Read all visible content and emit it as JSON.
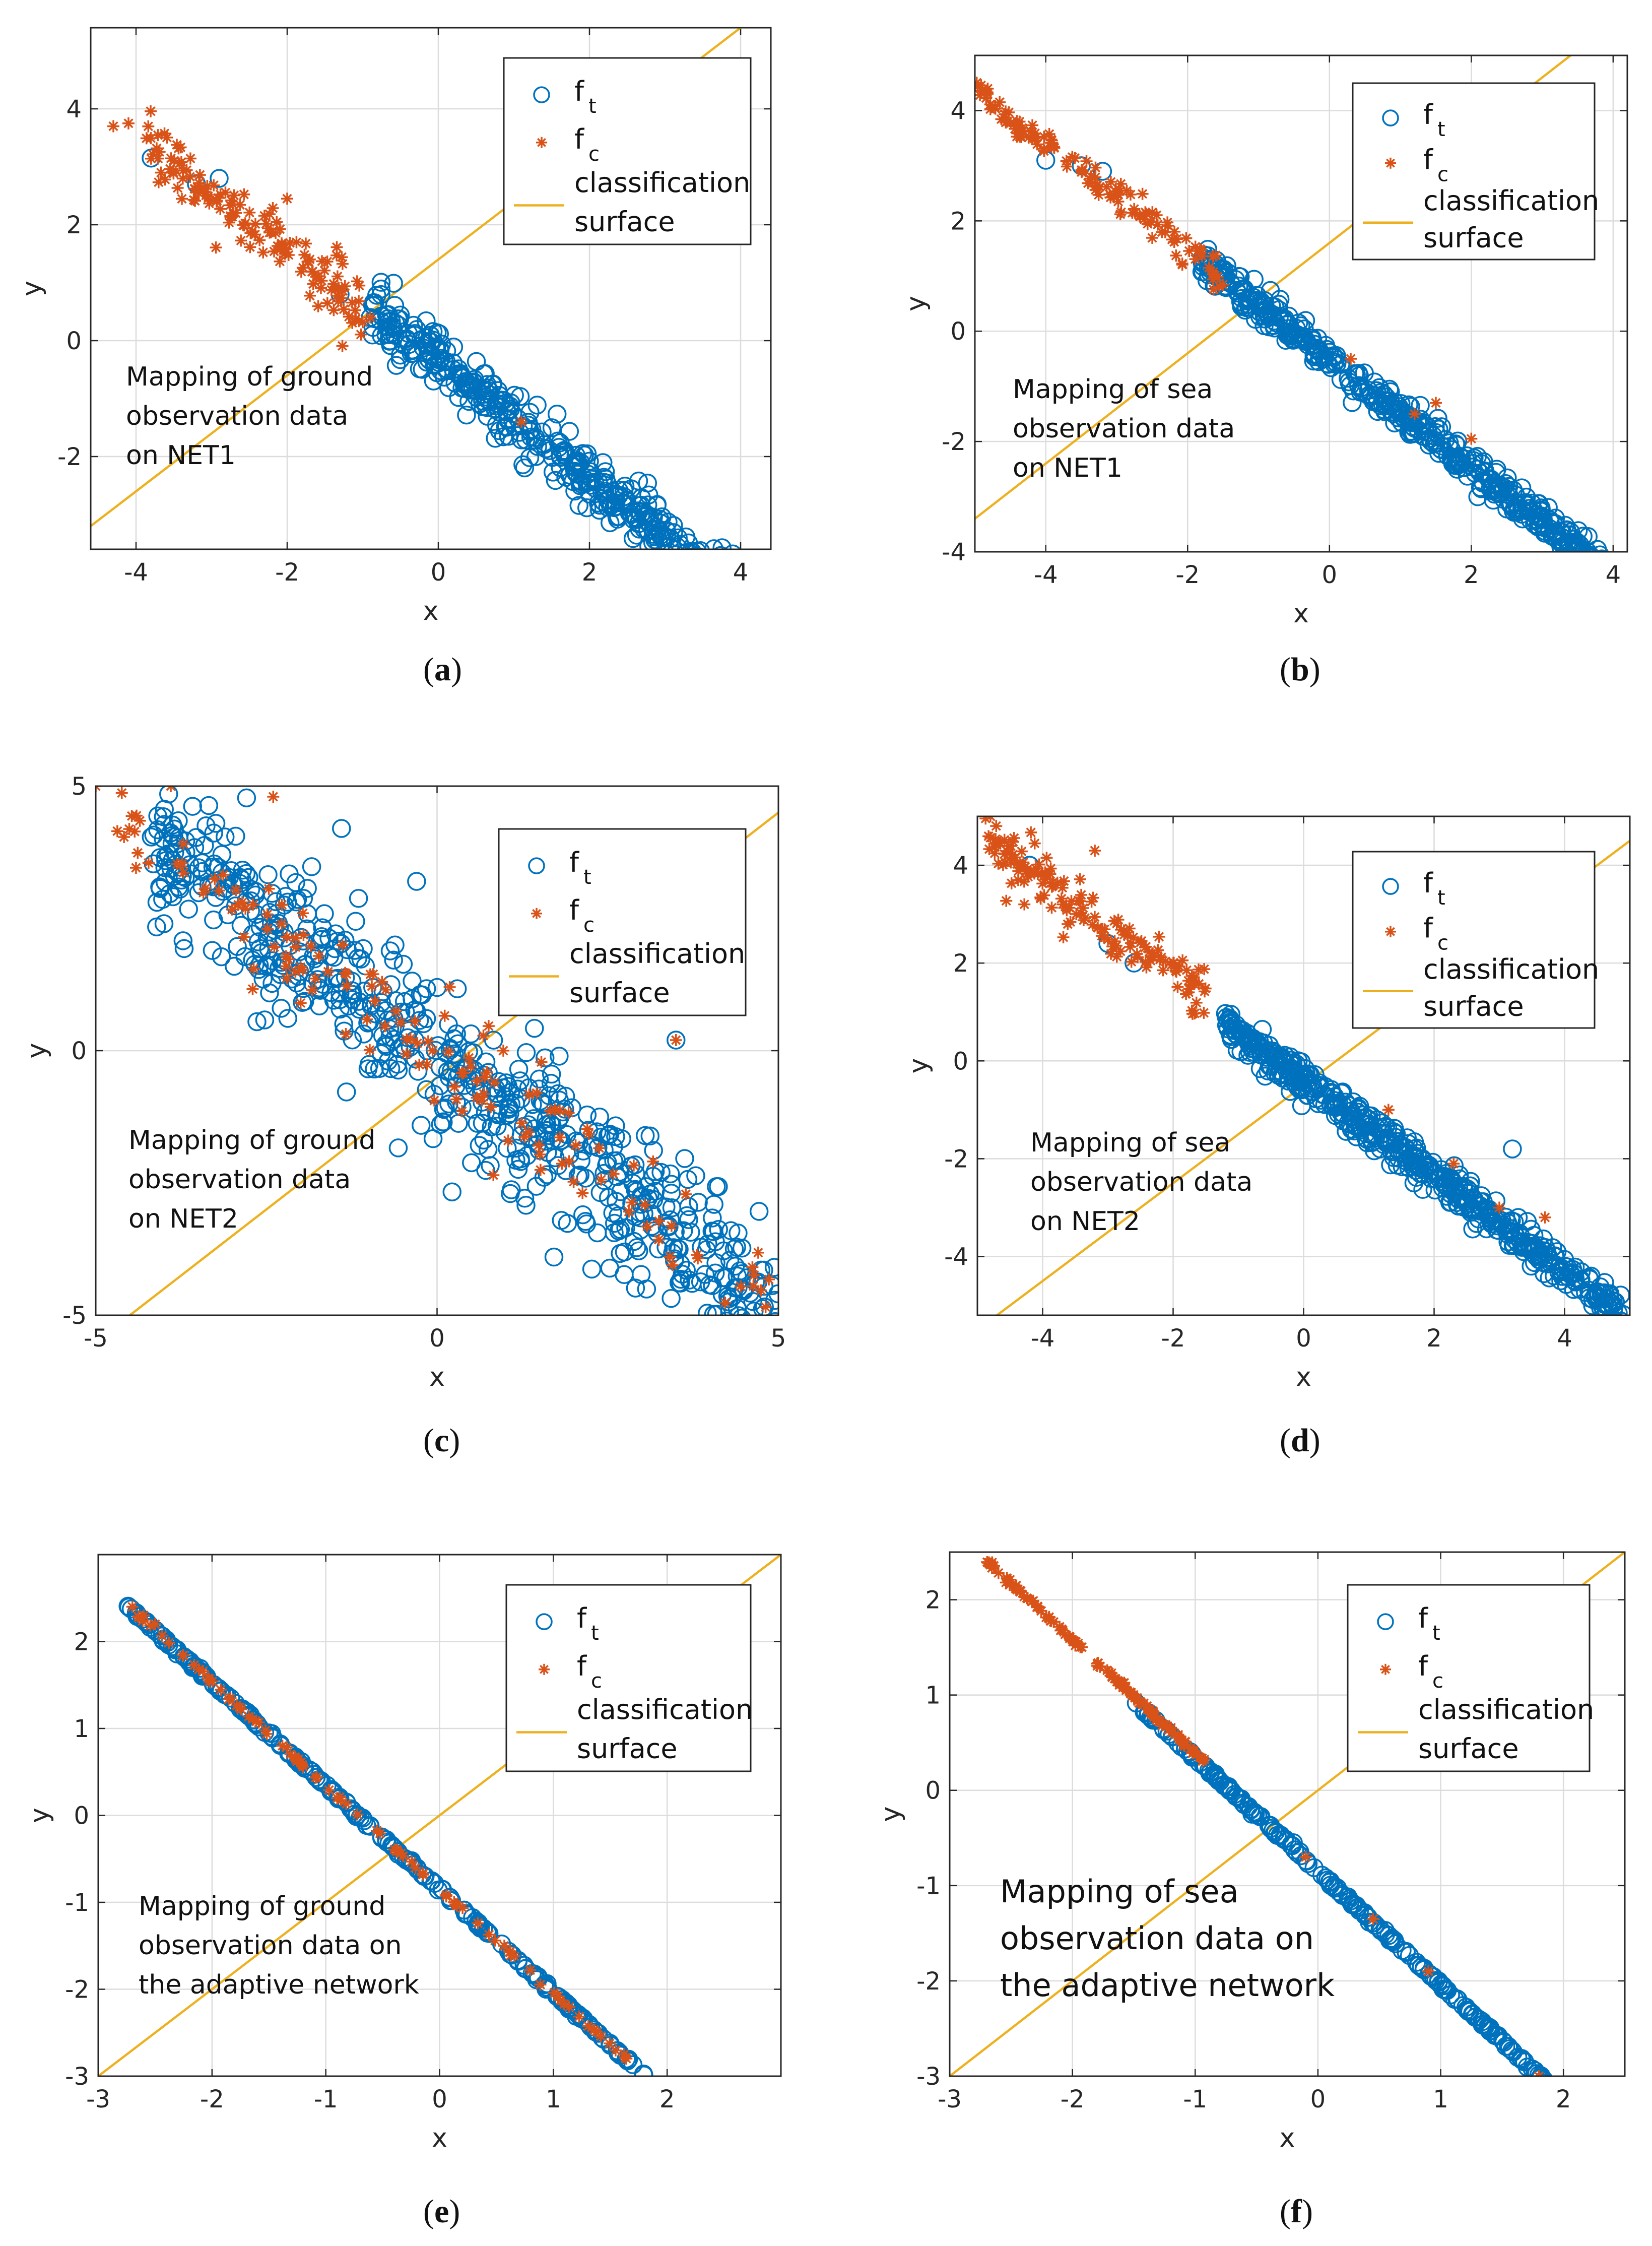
{
  "colors": {
    "target": "#0072BD",
    "clutter": "#D95319",
    "surface": "#EDB120"
  },
  "chart_data": [
    {
      "type": "scatter",
      "panel": "a",
      "xlabel": "x",
      "ylabel": "y",
      "xlim": [
        -4.6,
        4.4
      ],
      "ylim": [
        -3.6,
        5.4
      ],
      "xticks": [
        -4,
        -2,
        0,
        2,
        4
      ],
      "yticks": [
        -2,
        0,
        2,
        4
      ],
      "xtick_labels": [
        "-4",
        "-2",
        "0",
        "2",
        "4"
      ],
      "ytick_labels": [
        "-2",
        "0",
        "2",
        "4"
      ],
      "annotation": [
        "Mapping of ground",
        "observation data",
        "on NET1"
      ],
      "surface": {
        "slope": 1,
        "intercept": 1.4
      },
      "f_t": {
        "x_range": [
          -0.9,
          4.1
        ],
        "slope": -1.01,
        "intercept": -0.35,
        "spread": 0.25,
        "count": 420,
        "extra": [
          [
            -3.8,
            3.15
          ],
          [
            -3.2,
            2.7
          ],
          [
            -2.9,
            2.8
          ],
          [
            -1.3,
            0.8
          ],
          [
            -0.9,
            0.4
          ]
        ]
      },
      "f_c": {
        "x_range": [
          -3.9,
          -1.0
        ],
        "slope": -0.98,
        "intercept": -0.45,
        "spread": 0.28,
        "count": 150,
        "extra": [
          [
            -4.3,
            3.7
          ],
          [
            -4.1,
            3.75
          ],
          [
            -2.0,
            2.45
          ],
          [
            -0.9,
            0.4
          ],
          [
            1.1,
            -1.4
          ]
        ]
      },
      "legend": {
        "f_t": "f",
        "f_t_sub": "t",
        "f_c": "f",
        "f_c_sub": "c",
        "surface_line1": "classification",
        "surface_line2": "surface"
      },
      "label_letter": "a"
    },
    {
      "type": "scatter",
      "panel": "b",
      "xlabel": "x",
      "ylabel": "y",
      "xlim": [
        -5.0,
        4.2
      ],
      "ylim": [
        -4.0,
        5.0
      ],
      "xticks": [
        -4,
        -2,
        0,
        2,
        4
      ],
      "yticks": [
        -4,
        -2,
        0,
        2,
        4
      ],
      "xtick_labels": [
        "-4",
        "-2",
        "0",
        "2",
        "4"
      ],
      "ytick_labels": [
        "-4",
        "-2",
        "0",
        "2",
        "4"
      ],
      "annotation": [
        "Mapping of sea",
        "observation data",
        "on NET1"
      ],
      "surface": {
        "slope": 1,
        "intercept": 1.6
      },
      "f_t": {
        "x_range": [
          -1.8,
          4.0
        ],
        "slope": -0.98,
        "intercept": -0.5,
        "spread": 0.14,
        "count": 480,
        "extra": [
          [
            -4.0,
            3.1
          ],
          [
            -3.5,
            3.0
          ],
          [
            -3.2,
            2.9
          ]
        ]
      },
      "f_c": {
        "x_range": [
          -5.0,
          -1.5
        ],
        "slope": -0.98,
        "intercept": -0.5,
        "spread": 0.15,
        "count": 130,
        "extra": [
          [
            0.3,
            -0.5
          ],
          [
            1.2,
            -1.5
          ],
          [
            2.0,
            -1.95
          ],
          [
            1.5,
            -1.3
          ]
        ]
      },
      "legend": {
        "f_t": "f",
        "f_t_sub": "t",
        "f_c": "f",
        "f_c_sub": "c",
        "surface_line1": "classification",
        "surface_line2": "surface"
      },
      "label_letter": "b"
    },
    {
      "type": "scatter",
      "panel": "c",
      "xlabel": "x",
      "ylabel": "y",
      "xlim": [
        -5,
        5
      ],
      "ylim": [
        -5,
        5
      ],
      "xticks": [
        -5,
        0,
        5
      ],
      "yticks": [
        -5,
        0,
        5
      ],
      "xtick_labels": [
        "-5",
        "0",
        "5"
      ],
      "ytick_labels": [
        "-5",
        "0",
        "5"
      ],
      "annotation": [
        "Mapping of ground",
        "observation data",
        "on NET2"
      ],
      "surface": {
        "slope": 1,
        "intercept": -0.5
      },
      "f_t": {
        "x_range": [
          -4.2,
          5.0
        ],
        "slope": -0.98,
        "intercept": -0.1,
        "spread": 0.75,
        "count": 650,
        "extra": [
          [
            -4.0,
            2.4
          ],
          [
            -1.4,
            4.2
          ],
          [
            -0.3,
            3.2
          ],
          [
            3.5,
            0.2
          ]
        ]
      },
      "f_c": {
        "x_range": [
          -4.8,
          4.9
        ],
        "slope": -0.97,
        "intercept": -0.1,
        "spread": 0.45,
        "count": 150,
        "extra": [
          [
            -5.0,
            5.0
          ],
          [
            -3.9,
            5.0
          ],
          [
            -2.4,
            4.8
          ],
          [
            3.5,
            0.2
          ]
        ]
      },
      "legend": {
        "f_t": "f",
        "f_t_sub": "t",
        "f_c": "f",
        "f_c_sub": "c",
        "surface_line1": "classification",
        "surface_line2": "surface"
      },
      "label_letter": "c"
    },
    {
      "type": "scatter",
      "panel": "d",
      "xlabel": "x",
      "ylabel": "y",
      "xlim": [
        -5.0,
        5.0
      ],
      "ylim": [
        -5.2,
        5.0
      ],
      "xticks": [
        -4,
        -2,
        0,
        2,
        4
      ],
      "yticks": [
        -4,
        -2,
        0,
        2,
        4
      ],
      "xtick_labels": [
        "-4",
        "-2",
        "0",
        "2",
        "4"
      ],
      "ytick_labels": [
        "-4",
        "-2",
        "0",
        "2",
        "4"
      ],
      "annotation": [
        "Mapping of sea",
        "observation data",
        "on NET2"
      ],
      "surface": {
        "slope": 1,
        "intercept": -0.5
      },
      "f_t": {
        "x_range": [
          -1.2,
          4.9
        ],
        "slope": -0.97,
        "intercept": -0.4,
        "spread": 0.18,
        "count": 520,
        "extra": [
          [
            -4.2,
            4.0
          ],
          [
            -3.0,
            2.4
          ],
          [
            -2.6,
            2.0
          ],
          [
            3.2,
            -1.8
          ]
        ]
      },
      "f_c": {
        "x_range": [
          -4.9,
          -1.5
        ],
        "slope": -0.98,
        "intercept": -0.2,
        "spread": 0.3,
        "count": 160,
        "extra": [
          [
            -4.8,
            5.0
          ],
          [
            -3.2,
            4.3
          ],
          [
            3.0,
            -3.0
          ],
          [
            1.3,
            -1.0
          ],
          [
            3.7,
            -3.2
          ],
          [
            2.3,
            -2.1
          ]
        ]
      },
      "legend": {
        "f_t": "f",
        "f_t_sub": "t",
        "f_c": "f",
        "f_c_sub": "c",
        "surface_line1": "classification",
        "surface_line2": "surface"
      },
      "label_letter": "d"
    },
    {
      "type": "scatter",
      "panel": "e",
      "xlabel": "x",
      "ylabel": "y",
      "xlim": [
        -3.0,
        3.0
      ],
      "ylim": [
        -3.0,
        3.0
      ],
      "xticks": [
        -3,
        -2,
        -1,
        0,
        1,
        2
      ],
      "yticks": [
        -3,
        -2,
        -1,
        0,
        1,
        2
      ],
      "xtick_labels": [
        "-3",
        "-2",
        "-1",
        "0",
        "1",
        "2"
      ],
      "ytick_labels": [
        "-3",
        "-2",
        "-1",
        "0",
        "1",
        "2"
      ],
      "annotation": [
        "Mapping of ground",
        "observation data on",
        "the adaptive network"
      ],
      "surface": {
        "slope": 1,
        "intercept": 0.0
      },
      "f_t": {
        "x_range": [
          -2.75,
          1.8
        ],
        "slope": -1.19,
        "intercept": -0.85,
        "spread": 0.015,
        "count": 260,
        "extra": []
      },
      "f_c": {
        "x_range": [
          -2.75,
          1.8
        ],
        "slope": -1.19,
        "intercept": -0.85,
        "spread": 0.015,
        "count": 90,
        "extra": [
          [
            -2.7,
            2.4
          ],
          [
            -2.6,
            2.3
          ],
          [
            -2.5,
            2.2
          ]
        ]
      },
      "legend": {
        "f_t": "f",
        "f_t_sub": "t",
        "f_c": "f",
        "f_c_sub": "c",
        "surface_line1": "classification",
        "surface_line2": "surface"
      },
      "label_letter": "e"
    },
    {
      "type": "scatter",
      "panel": "f",
      "xlabel": "x",
      "ylabel": "y",
      "xlim": [
        -3.0,
        2.5
      ],
      "ylim": [
        -3.0,
        2.5
      ],
      "xticks": [
        -3,
        -2,
        -1,
        0,
        1,
        2
      ],
      "yticks": [
        -3,
        -2,
        -1,
        0,
        1,
        2
      ],
      "xtick_labels": [
        "-3",
        "-2",
        "-1",
        "0",
        "1",
        "2"
      ],
      "ytick_labels": [
        "-3",
        "-2",
        "-1",
        "0",
        "1",
        "2"
      ],
      "annotation": [
        "Mapping of sea",
        "observation data on",
        "the adaptive network"
      ],
      "surface": {
        "slope": 1,
        "intercept": 0.0
      },
      "f_t": {
        "x_range": [
          -1.5,
          1.85
        ],
        "slope": -1.19,
        "intercept": -0.85,
        "spread": 0.012,
        "count": 220,
        "extra": [
          [
            -0.4,
            -0.37
          ],
          [
            -0.55,
            -0.2
          ],
          [
            -0.6,
            -0.15
          ],
          [
            -0.2,
            -0.55
          ]
        ]
      },
      "f_c": {
        "x_range": [
          -2.7,
          -0.9
        ],
        "slope": -1.19,
        "intercept": -0.8,
        "spread": 0.015,
        "count": 140,
        "extra": [
          [
            0.9,
            -1.9
          ],
          [
            1.8,
            -3.0
          ],
          [
            -0.1,
            -0.7
          ],
          [
            0.45,
            -1.35
          ]
        ]
      },
      "legend": {
        "f_t": "f",
        "f_t_sub": "t",
        "f_c": "f",
        "f_c_sub": "c",
        "surface_line1": "classification",
        "surface_line2": "surface"
      },
      "label_letter": "f"
    }
  ]
}
